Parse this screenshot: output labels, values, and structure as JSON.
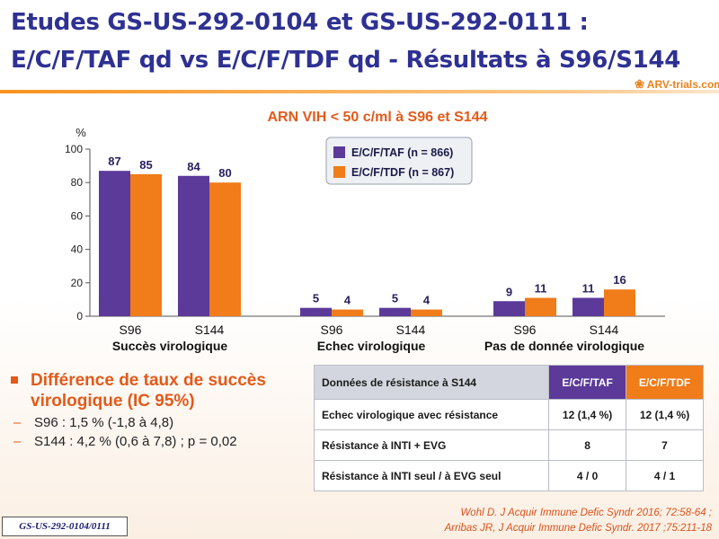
{
  "title": {
    "line1": "Etudes GS-US-292-0104 et GS-US-292-0111 :",
    "line2": "E/C/F/TAF qd vs E/C/F/TDF qd - Résultats à S96/S144"
  },
  "logo": {
    "text": "ARV-trials.com"
  },
  "colors": {
    "taf": "#5b3a9a",
    "tdf": "#f07c1a",
    "title": "#2e3192",
    "accent": "#e35a1a"
  },
  "chart_data": {
    "type": "bar",
    "title": "ARN VIH < 50 c/ml à S96 et S144",
    "ylabel": "%",
    "ylim": [
      0,
      100
    ],
    "yticks": [
      0,
      20,
      40,
      60,
      80,
      100
    ],
    "groups": [
      {
        "label": "Succès virologique",
        "categories": [
          "S96",
          "S144"
        ]
      },
      {
        "label": "Echec virologique",
        "categories": [
          "S96",
          "S144"
        ]
      },
      {
        "label": "Pas de donnée virologique",
        "categories": [
          "S96",
          "S144"
        ]
      }
    ],
    "series": [
      {
        "name": "E/C/F/TAF (n = 866)",
        "values": [
          87,
          84,
          5,
          5,
          9,
          11
        ]
      },
      {
        "name": "E/C/F/TDF (n = 867)",
        "values": [
          85,
          80,
          4,
          4,
          11,
          16
        ]
      }
    ],
    "legend_position": "top-right"
  },
  "bullet": {
    "heading": "Différence de taux de succès virologique (IC 95%)",
    "items": [
      {
        "dash": "–",
        "text": "S96 : 1,5 % (-1,8 à 4,8)"
      },
      {
        "dash": "–",
        "text": "S144 : 4,2 % (0,6 à 7,8) ; p = 0,02"
      }
    ]
  },
  "resistance_table": {
    "headers": [
      "Données de résistance à S144",
      "E/C/F/TAF",
      "E/C/F/TDF"
    ],
    "rows": [
      [
        "Echec virologique avec résistance",
        "12 (1,4 %)",
        "12 (1,4 %)"
      ],
      [
        "Résistance à INTI + EVG",
        "8",
        "7"
      ],
      [
        "Résistance à INTI seul / à EVG seul",
        "4 / 0",
        "4 / 1"
      ]
    ]
  },
  "references": {
    "line1": "Wohl D. J Acquir Immune Defic Syndr 2016; 72:58-64 ;",
    "line2": "Arribas JR, J Acquir Immune Defic Syndr. 2017 ;75:211-18"
  },
  "study_tag": "GS-US-292-0104/0111"
}
